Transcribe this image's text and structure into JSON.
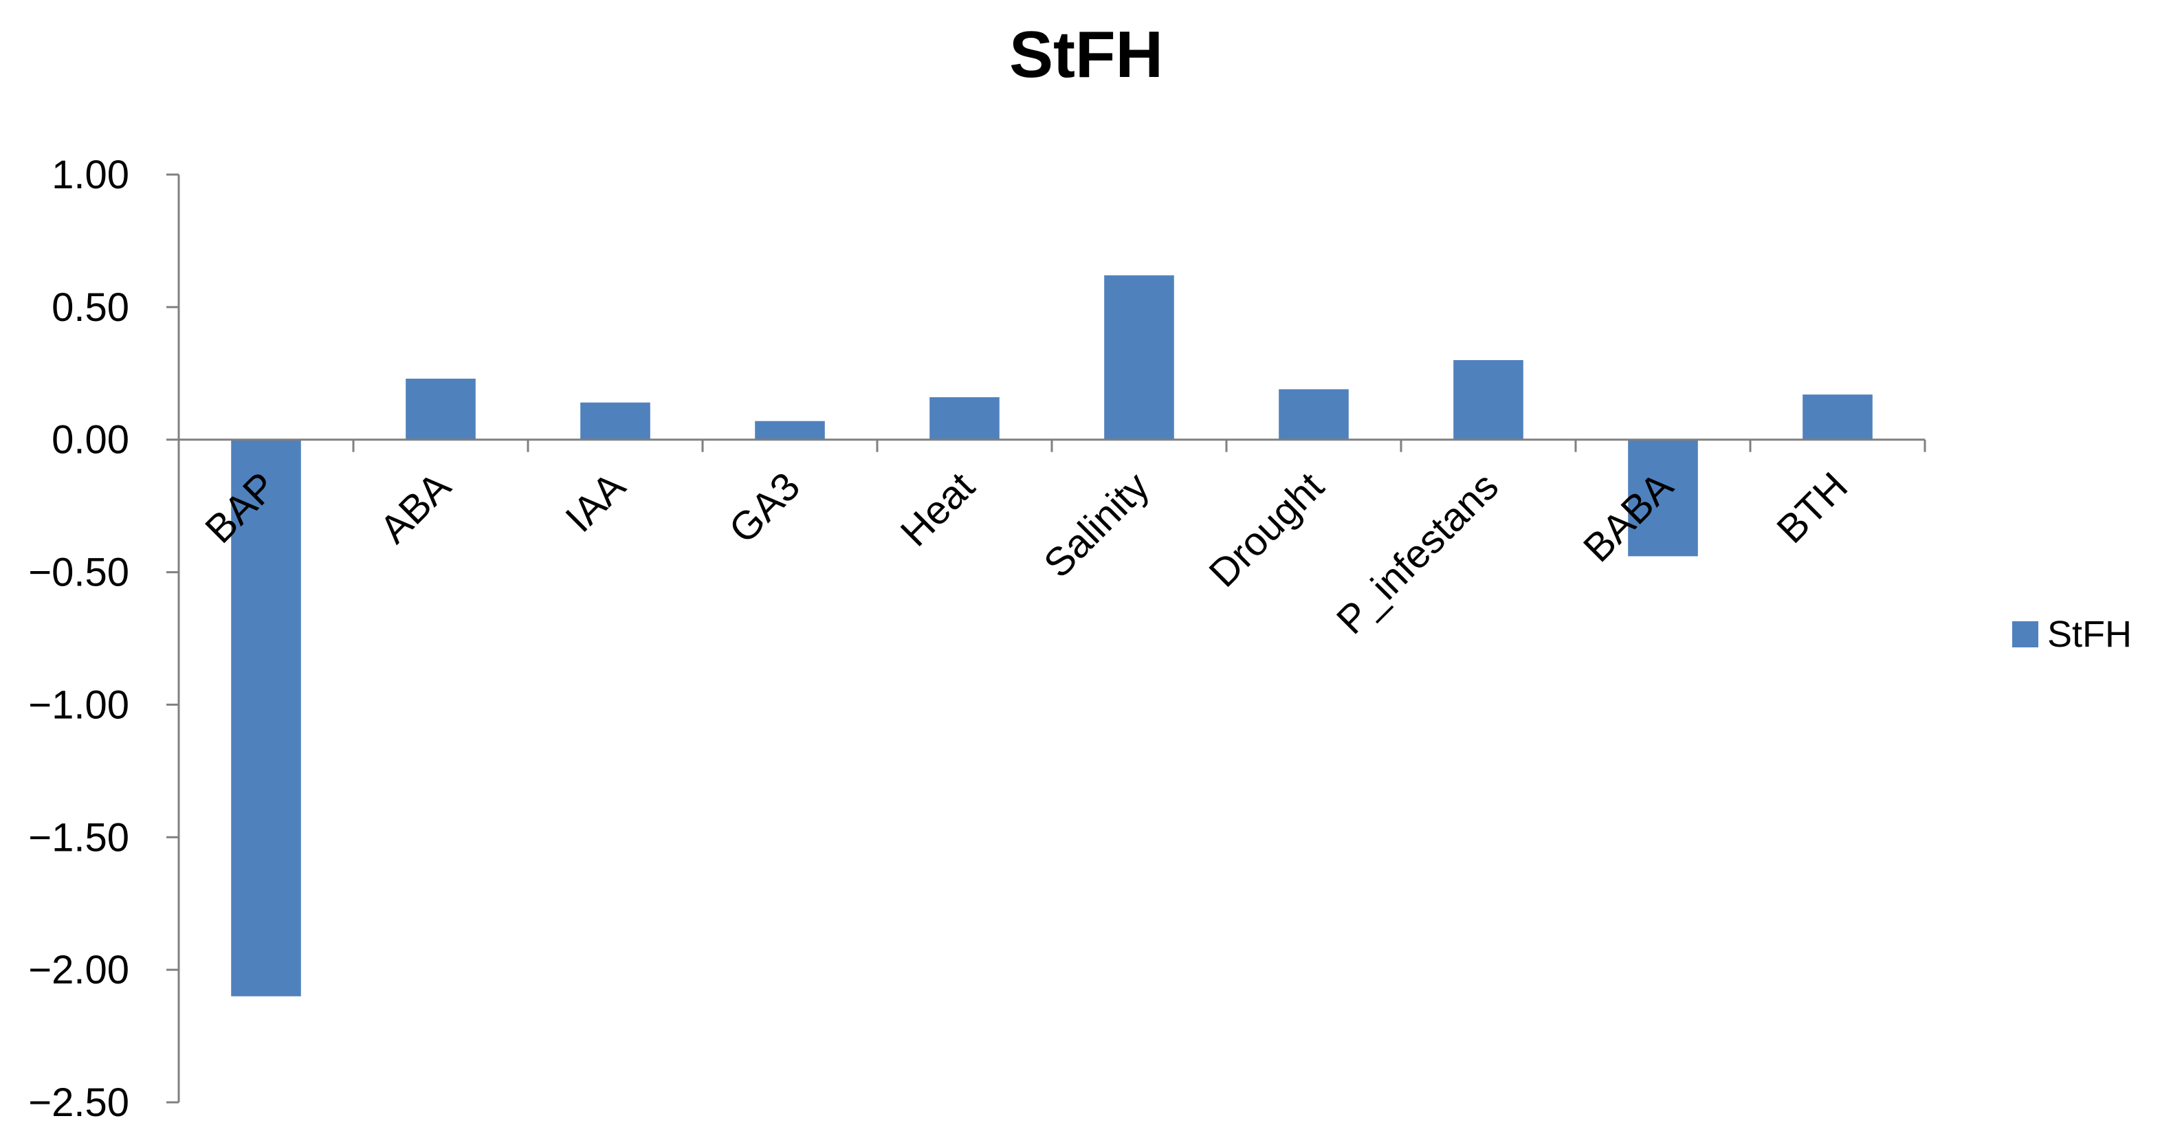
{
  "chart_data": {
    "type": "bar",
    "title": "StFH",
    "xlabel": "",
    "ylabel": "",
    "categories": [
      "BAP",
      "ABA",
      "IAA",
      "GA3",
      "Heat",
      "Salinity",
      "Drought",
      "P_infestans",
      "BABA",
      "BTH"
    ],
    "series": [
      {
        "name": "StFH",
        "values": [
          -2.1,
          0.23,
          0.14,
          0.07,
          0.16,
          0.62,
          0.19,
          0.3,
          -0.44,
          0.17
        ],
        "color": "#4F81BD"
      }
    ],
    "ylim": [
      -2.5,
      1.0
    ],
    "yticks": [
      "1.00",
      "0.50",
      "0.00",
      "−0.50",
      "−1.00",
      "−1.50",
      "−2.00",
      "−2.50"
    ],
    "ytick_values": [
      1.0,
      0.5,
      0.0,
      -0.5,
      -1.0,
      -1.5,
      -2.0,
      -2.5
    ],
    "grid": false,
    "legend": {
      "position": "right",
      "entries": [
        "StFH"
      ]
    }
  }
}
